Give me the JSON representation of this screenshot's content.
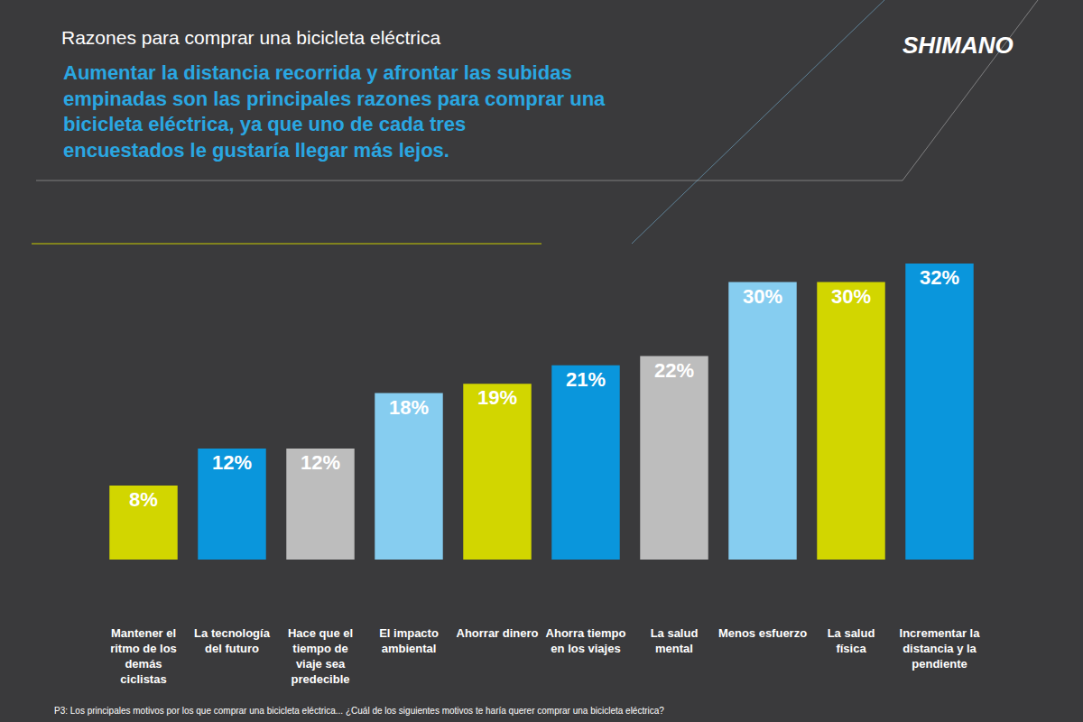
{
  "chart_data": {
    "type": "bar",
    "title": "Razones para comprar una bicicleta eléctrica",
    "subtitle": "Aumentar la distancia recorrida y afrontar las subidas empinadas son las principales razones para comprar una bicicleta eléctrica, ya que uno de cada tres encuestados le gustaría llegar más lejos.",
    "brand": "SHIMANO",
    "note": "P3: Los principales motivos por los que comprar una bicicleta eléctrica... ¿Cuál de los siguientes motivos te haría querer comprar una bicicleta eléctrica?",
    "categories": [
      "Mantener el ritmo de los demás ciclistas",
      "La tecnología del futuro",
      "Hace que el tiempo de viaje sea predecible",
      "El impacto ambiental",
      "Ahorrar dinero",
      "Ahorra tiempo en los viajes",
      "La salud mental",
      "Menos esfuerzo",
      "La salud física",
      "Incrementar la distancia y la pendiente"
    ],
    "values": [
      8,
      12,
      12,
      18,
      19,
      21,
      22,
      30,
      30,
      32
    ],
    "value_labels": [
      "8%",
      "12%",
      "12%",
      "18%",
      "19%",
      "21%",
      "22%",
      "30%",
      "30%",
      "32%"
    ],
    "colors": [
      "#d2d600",
      "#0a96dc",
      "#bdbdbd",
      "#86cdf0",
      "#d2d600",
      "#0a96dc",
      "#bdbdbd",
      "#86cdf0",
      "#d2d600",
      "#0a96dc"
    ],
    "ylim": [
      0,
      32
    ],
    "data_labels": true,
    "tick_labels": "x",
    "grid": false
  }
}
